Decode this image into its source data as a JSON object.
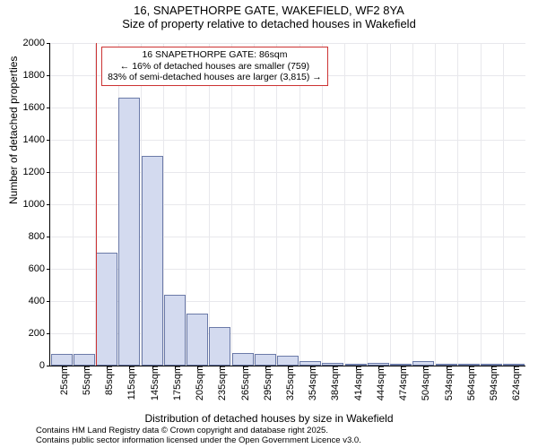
{
  "title": {
    "line1": "16, SNAPETHORPE GATE, WAKEFIELD, WF2 8YA",
    "line2": "Size of property relative to detached houses in Wakefield"
  },
  "callout": {
    "line1": "16 SNAPETHORPE GATE: 86sqm",
    "line2": "← 16% of detached houses are smaller (759)",
    "line3": "83% of semi-detached houses are larger (3,815) →"
  },
  "y_axis": {
    "label": "Number of detached properties",
    "min": 0,
    "max": 2000,
    "step": 200
  },
  "x_axis": {
    "label": "Distribution of detached houses by size in Wakefield",
    "tick_labels": [
      "25sqm",
      "55sqm",
      "85sqm",
      "115sqm",
      "145sqm",
      "175sqm",
      "205sqm",
      "235sqm",
      "265sqm",
      "295sqm",
      "325sqm",
      "354sqm",
      "384sqm",
      "414sqm",
      "444sqm",
      "474sqm",
      "504sqm",
      "534sqm",
      "564sqm",
      "594sqm",
      "624sqm"
    ]
  },
  "bars": {
    "values": [
      70,
      70,
      700,
      1660,
      1300,
      440,
      320,
      240,
      80,
      70,
      60,
      30,
      18,
      10,
      18,
      8,
      30,
      6,
      4,
      2,
      2
    ],
    "fill": "#d3daef",
    "border": "#6b7aa8",
    "width_frac": 0.95
  },
  "marker": {
    "index": 2,
    "color": "#cc3333"
  },
  "attribution": {
    "line1": "Contains HM Land Registry data © Crown copyright and database right 2025.",
    "line2": "Contains public sector information licensed under the Open Government Licence v3.0."
  },
  "style": {
    "grid_color": "#e8e8ec",
    "bg": "#ffffff",
    "axis_color": "#000000",
    "font_family": "Arial"
  }
}
